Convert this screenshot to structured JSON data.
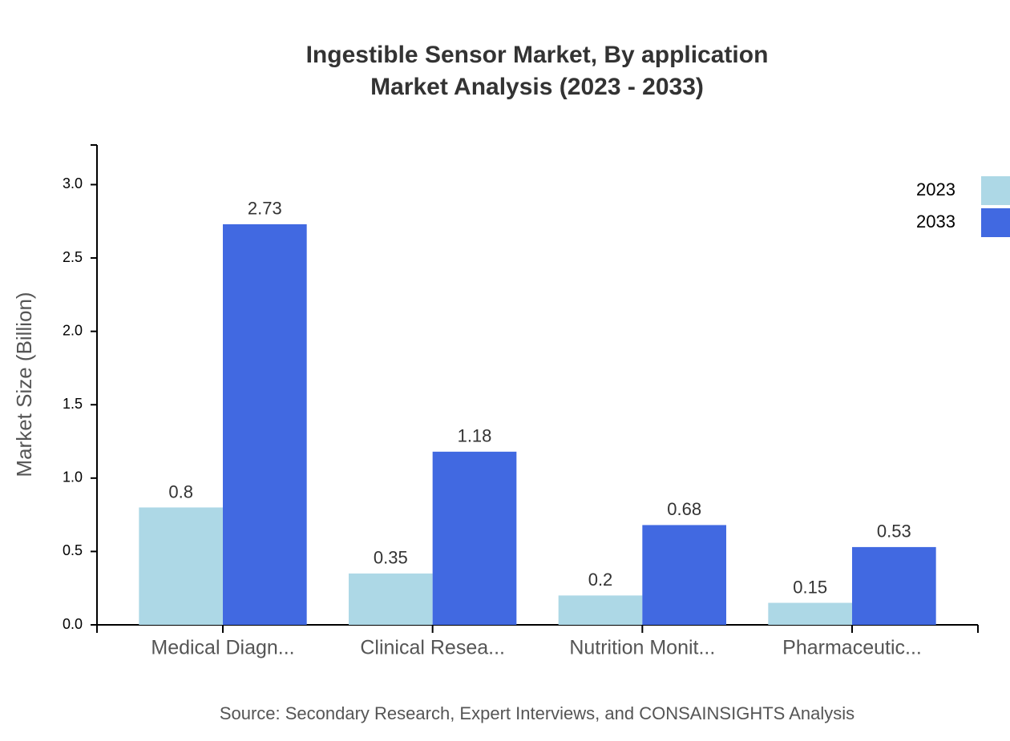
{
  "chart_data": {
    "type": "bar",
    "title": [
      "Ingestible Sensor Market, By application",
      "Market Analysis (2023 - 2033)"
    ],
    "y_label": "Market Size (Billion)",
    "source": "Source: Secondary Research, Expert Interviews, and CONSAINSIGHTS Analysis",
    "categories": [
      "Medical Diagn...",
      "Clinical Resea...",
      "Nutrition Monit...",
      "Pharmaceutic..."
    ],
    "series": [
      {
        "name": "2023",
        "color": "#add8e6",
        "values": [
          0.8,
          0.35,
          0.2,
          0.15
        ]
      },
      {
        "name": "2033",
        "color": "#4169e1",
        "values": [
          2.73,
          1.18,
          0.68,
          0.53
        ]
      }
    ],
    "ylim": [
      0,
      3.27
    ],
    "yticks": [
      {
        "value": 0,
        "label": "0.0"
      },
      0.5,
      {
        "value": 1,
        "label": "1.0"
      },
      1.5,
      {
        "value": 2,
        "label": "2.0"
      },
      2.5,
      {
        "value": 3,
        "label": "3.0"
      }
    ],
    "legend": "top-right"
  }
}
